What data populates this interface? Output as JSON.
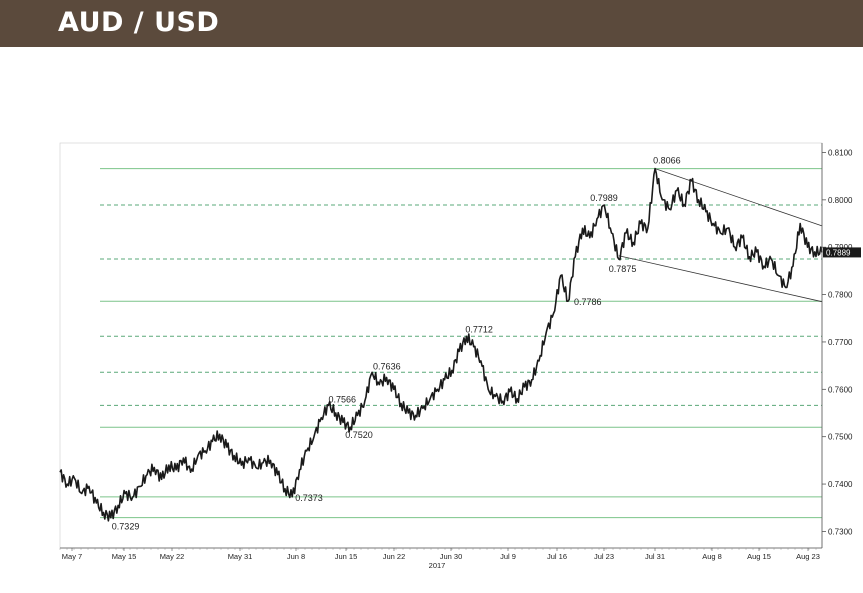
{
  "header": {
    "title": "AUD / USD"
  },
  "colors": {
    "header_bg": "#5b4a3c",
    "price": "#1a1a1a",
    "support": "#7cc48a",
    "resistance": "#5aa878",
    "channel": "#333333",
    "last_badge": "#1a1a1a"
  },
  "chart_data": {
    "type": "line",
    "title": "",
    "xlabel": "2017",
    "ylabel": "",
    "ylim": [
      0.7265,
      0.812
    ],
    "x_ticks": [
      "May 7",
      "May 15",
      "May 22",
      "May 31",
      "Jun 8",
      "Jun 15",
      "Jun 22",
      "Jun 30",
      "Jul 9",
      "Jul 16",
      "Jul 23",
      "Jul 31",
      "Aug 8",
      "Aug 15",
      "Aug 23"
    ],
    "y_ticks": [
      "0.7300",
      "0.7400",
      "0.7500",
      "0.7600",
      "0.7700",
      "0.7800",
      "0.7900",
      "0.8000",
      "0.8100"
    ],
    "y_tick_values": [
      0.73,
      0.74,
      0.75,
      0.76,
      0.77,
      0.78,
      0.79,
      0.8,
      0.81
    ],
    "last_price": "0.7889",
    "series": [
      {
        "x": [
          0,
          2,
          4,
          6,
          8,
          10,
          12,
          14,
          16,
          18,
          20,
          22,
          24,
          26,
          28,
          30,
          32,
          34,
          36,
          38,
          40,
          42,
          44,
          46,
          48,
          50,
          52,
          54,
          56,
          58,
          60,
          62,
          64,
          66,
          68,
          70,
          72,
          74,
          76,
          78,
          80,
          82,
          84,
          86,
          88,
          90,
          92,
          94,
          96,
          98,
          100,
          102,
          104,
          106,
          108,
          110,
          112,
          114,
          116,
          118,
          120,
          122,
          124,
          126,
          128,
          130,
          132,
          134,
          136,
          138,
          140,
          142,
          144,
          146,
          148,
          150,
          152,
          154,
          156,
          158,
          160,
          162,
          164,
          166,
          168,
          170,
          172,
          174,
          176,
          178,
          180,
          182,
          184,
          186,
          188,
          190,
          192,
          194,
          196,
          198,
          200,
          202,
          204,
          206,
          208,
          210
        ],
        "values": [
          0.7425,
          0.74,
          0.7412,
          0.738,
          0.7395,
          0.736,
          0.734,
          0.7329,
          0.7355,
          0.738,
          0.7372,
          0.7395,
          0.742,
          0.7435,
          0.741,
          0.744,
          0.743,
          0.7455,
          0.7425,
          0.746,
          0.747,
          0.749,
          0.7505,
          0.7478,
          0.746,
          0.744,
          0.7455,
          0.7435,
          0.7445,
          0.745,
          0.742,
          0.739,
          0.7373,
          0.743,
          0.747,
          0.75,
          0.754,
          0.7566,
          0.755,
          0.753,
          0.752,
          0.7545,
          0.7575,
          0.7636,
          0.761,
          0.7625,
          0.76,
          0.757,
          0.755,
          0.7545,
          0.756,
          0.758,
          0.76,
          0.762,
          0.764,
          0.768,
          0.7712,
          0.769,
          0.766,
          0.76,
          0.7585,
          0.7575,
          0.7595,
          0.758,
          0.7605,
          0.762,
          0.766,
          0.772,
          0.776,
          0.784,
          0.7786,
          0.788,
          0.794,
          0.792,
          0.796,
          0.7989,
          0.793,
          0.7875,
          0.793,
          0.791,
          0.795,
          0.794,
          0.8066,
          0.8,
          0.798,
          0.802,
          0.799,
          0.804,
          0.8,
          0.7975,
          0.795,
          0.793,
          0.794,
          0.79,
          0.792,
          0.788,
          0.789,
          0.786,
          0.7875,
          0.784,
          0.7815,
          0.786,
          0.795,
          0.79,
          0.789,
          0.7889
        ]
      }
    ],
    "annotations": [
      {
        "label": "0.8066",
        "value": 0.8066
      },
      {
        "label": "0.7989",
        "value": 0.7989
      },
      {
        "label": "0.7875",
        "value": 0.7875
      },
      {
        "label": "0.7786",
        "value": 0.7786
      },
      {
        "label": "0.7712",
        "value": 0.7712
      },
      {
        "label": "0.7636",
        "value": 0.7636
      },
      {
        "label": "0.7566",
        "value": 0.7566
      },
      {
        "label": "0.7520",
        "value": 0.752
      },
      {
        "label": "0.7373",
        "value": 0.7373
      },
      {
        "label": "0.7329",
        "value": 0.7329
      }
    ],
    "grid": false
  }
}
